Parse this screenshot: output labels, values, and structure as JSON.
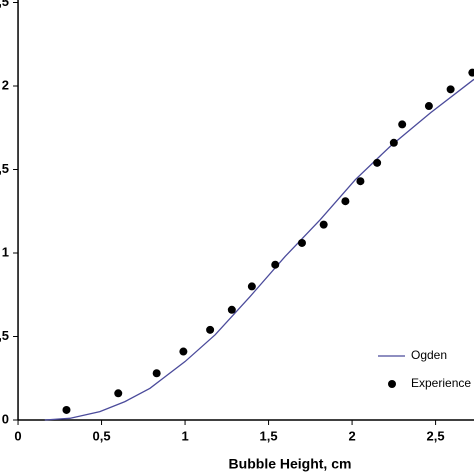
{
  "chart_data": {
    "type": "line_scatter",
    "xlabel": "Bubble Height, cm",
    "xlim": [
      -0.108,
      2.73
    ],
    "ylim": [
      0,
      2.515
    ],
    "xticks": [
      0,
      {
        "value": 0.5,
        "label": "0,5"
      },
      1,
      {
        "value": 1.5,
        "label": "1,5"
      },
      2,
      {
        "value": 2.5,
        "label": "2,5"
      }
    ],
    "yticks": [
      0,
      {
        "value": 0.5,
        "label": "0,5"
      },
      1,
      {
        "value": 1.5,
        "label": "1,5"
      },
      2,
      {
        "value": 2.5,
        "label": "2,5"
      }
    ],
    "legend": "right",
    "series": [
      {
        "name": "Ogden",
        "kind": "line",
        "color": "#4b4b9b",
        "x": [
          0.16,
          0.31,
          0.49,
          0.64,
          0.79,
          1.0,
          1.18,
          1.39,
          1.6,
          1.81,
          2.02,
          2.23,
          2.47,
          2.73
        ],
        "values": [
          0,
          0.01,
          0.05,
          0.11,
          0.19,
          0.35,
          0.51,
          0.74,
          0.98,
          1.2,
          1.44,
          1.64,
          1.84,
          2.04
        ]
      },
      {
        "name": "Experience",
        "kind": "scatter",
        "color": "#000000",
        "x": [
          0.29,
          0.6,
          0.83,
          0.99,
          1.15,
          1.28,
          1.4,
          1.54,
          1.7,
          1.83,
          1.96,
          2.05,
          2.15,
          2.25,
          2.3,
          2.46,
          2.59,
          2.72
        ],
        "values": [
          0.06,
          0.16,
          0.28,
          0.41,
          0.54,
          0.66,
          0.8,
          0.93,
          1.06,
          1.17,
          1.31,
          1.43,
          1.54,
          1.66,
          1.77,
          1.88,
          1.98,
          2.08
        ]
      }
    ]
  }
}
